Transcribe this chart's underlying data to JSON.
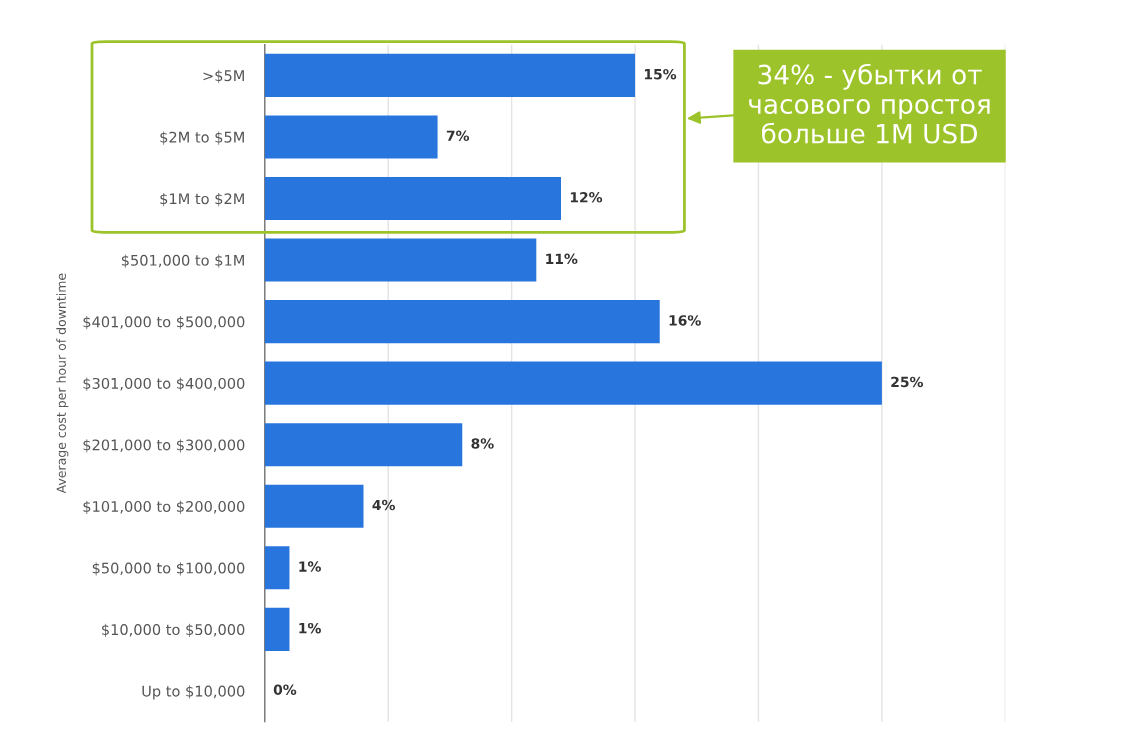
{
  "chart_data": {
    "type": "bar",
    "orientation": "horizontal",
    "ylabel": "Average cost per hour of downtime",
    "categories": [
      ">$5M",
      "$2M to $5M",
      "$1M to $2M",
      "$501,000 to $1M",
      "$401,000 to $500,000",
      "$301,000 to $400,000",
      "$201,000 to $300,000",
      "$101,000 to $200,000",
      "$50,000 to $100,000",
      "$10,000 to $50,000",
      "Up to $10,000"
    ],
    "values": [
      15,
      7,
      12,
      11,
      16,
      25,
      8,
      4,
      1,
      1,
      0
    ],
    "value_labels": [
      "15%",
      "7%",
      "12%",
      "11%",
      "16%",
      "25%",
      "8%",
      "4%",
      "1%",
      "1%",
      "0%"
    ],
    "color": "#2876dd",
    "xlim": [
      0,
      30
    ],
    "xticks": [
      {
        "value": 0,
        "label": null
      },
      {
        "value": 5,
        "label": null
      },
      {
        "value": 10,
        "label": null
      },
      {
        "value": 15,
        "label": null
      },
      {
        "value": 20,
        "label": null
      },
      {
        "value": 25,
        "label": null
      },
      {
        "value": 30,
        "label": null
      }
    ],
    "tick_labels": "y",
    "grid": "x",
    "legend": false,
    "annotations": [
      "34% - убытки от\nчасового простоя\nбольше 1M USD"
    ]
  }
}
